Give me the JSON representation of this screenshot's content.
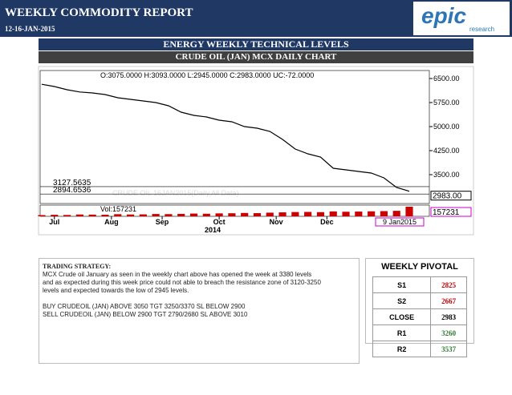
{
  "header": {
    "title": "WEEKLY COMMODITY REPORT",
    "date": "12-16-JAN-2015",
    "logo": "epic",
    "logo_sub": "research"
  },
  "banner": "ENERGY WEEKLY TECHNICAL LEVELS",
  "chart_title": "CRUDE OIL (JAN) MCX DAILY CHART",
  "chart": {
    "type": "line",
    "ohlc": "O:3075.0000 H:3093.0000 L:2945.0000 C:2983.0000 UC:-72.0000",
    "watermark": "CRUDE OIL 16JAN2015(Daily,All Data)",
    "series": [
      {
        "name": "Close",
        "color": "#000000",
        "values": [
          6320,
          6250,
          6150,
          6080,
          6050,
          6000,
          5900,
          5850,
          5800,
          5750,
          5650,
          5450,
          5350,
          5300,
          5200,
          5150,
          5000,
          4950,
          4850,
          4600,
          4300,
          4150,
          4050,
          3700,
          3650,
          3600,
          3550,
          3400,
          3100,
          2983
        ]
      }
    ],
    "volume": {
      "label": "Vol:157231",
      "last": 157231,
      "color": "#cc0000",
      "values": [
        20000,
        25000,
        22000,
        30000,
        28000,
        26000,
        35000,
        30000,
        32000,
        38000,
        36000,
        40000,
        45000,
        42000,
        48000,
        50000,
        55000,
        52000,
        60000,
        65000,
        70000,
        72000,
        68000,
        80000,
        75000,
        78000,
        82000,
        85000,
        90000,
        157231
      ]
    },
    "ylim": [
      2650,
      6750
    ],
    "yticks": [
      {
        "value": 6500,
        "label": "6500.00"
      },
      {
        "value": 5750,
        "label": "5750.00"
      },
      {
        "value": 5000,
        "label": "5000.00"
      },
      {
        "value": 4250,
        "label": "4250.00"
      },
      {
        "value": 3500,
        "label": "3500.00"
      }
    ],
    "levels": [
      3127.5635,
      2894.6536
    ],
    "last_price": {
      "value": 2983,
      "label": "2983.00"
    },
    "xlim": [
      0,
      29
    ],
    "xticks": [
      {
        "value": 1,
        "label": "Jul"
      },
      {
        "value": 5.5,
        "label": "Aug"
      },
      {
        "value": 9.5,
        "label": "Sep"
      },
      {
        "value": 14,
        "label": "Oct"
      },
      {
        "value": 18.5,
        "label": "Nov"
      },
      {
        "value": 22.5,
        "label": "Dec"
      }
    ],
    "year": "2014",
    "last_date": "9 Jan2015"
  },
  "strategy": {
    "title": "TRADING STRATEGY:",
    "lines": [
      "MCX Crude oil January as seen in the weekly chart above has opened the week at 3380 levels",
      "and as expected during this week price could not able to breach the resistance zone of 3120-3250",
      "levels and expected towards the low of 2945 levels."
    ],
    "calls": [
      "BUY CRUDEOIL (JAN) ABOVE 3050 TGT 3250/3370 SL BELOW 2900",
      "SELL CRUDEOIL (JAN) BELOW  2900 TGT 2790/2680 SL  ABOVE 3010"
    ]
  },
  "pivot": {
    "title": "WEEKLY PIVOTAL",
    "rows": [
      [
        "S1",
        2825
      ],
      [
        "S2",
        2667
      ],
      [
        "CLOSE",
        2983
      ],
      [
        "R1",
        3260
      ],
      [
        "R2",
        3537
      ]
    ]
  }
}
